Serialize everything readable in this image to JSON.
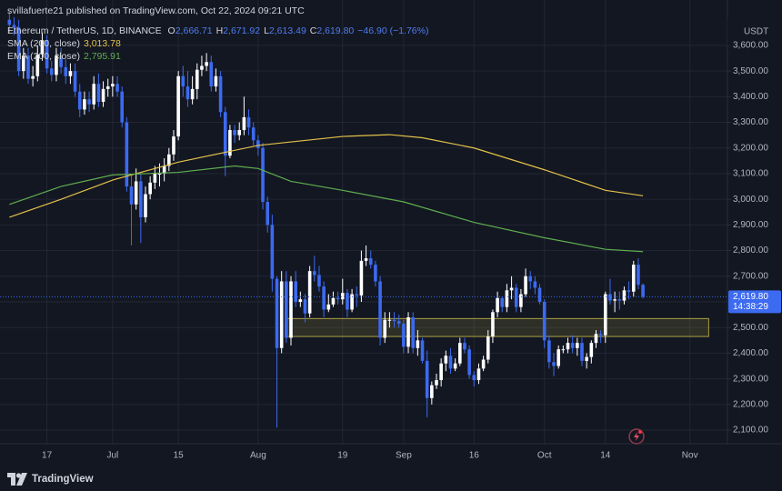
{
  "header": {
    "publisher": "svillafuerte21 published on TradingView.com, Oct 22, 2024 09:21 UTC",
    "symbol": "Ethereum / TetherUS, 1D, BINANCE",
    "ohlc": [
      {
        "label": "O",
        "value": "2,666.71"
      },
      {
        "label": "H",
        "value": "2,671.92"
      },
      {
        "label": "L",
        "value": "2,613.49"
      },
      {
        "label": "C",
        "value": "2,619.80"
      }
    ],
    "change": "−46.90 (−1.76%)",
    "indicators": [
      {
        "label": "SMA (200, close)",
        "value": "3,013.78",
        "color": "#e3c14a"
      },
      {
        "label": "EMA (200, close)",
        "value": "2,795.91",
        "color": "#5fae4f"
      }
    ]
  },
  "footer": {
    "brand": "TradingView"
  },
  "chart_data": {
    "type": "candlestick",
    "currency": "USDT",
    "up_color": "#ffffff",
    "down_color": "#3c6af0",
    "grid": true,
    "x": [
      "Jun 9",
      "Jun 10",
      "Jun 11",
      "Jun 12",
      "Jun 13",
      "Jun 14",
      "Jun 15",
      "Jun 16",
      "Jun 17",
      "Jun 18",
      "Jun 19",
      "Jun 20",
      "Jun 21",
      "Jun 22",
      "Jun 23",
      "Jun 24",
      "Jun 25",
      "Jun 26",
      "Jun 27",
      "Jun 28",
      "Jun 29",
      "Jun 30",
      "Jul 1",
      "Jul 2",
      "Jul 3",
      "Jul 4",
      "Jul 5",
      "Jul 6",
      "Jul 7",
      "Jul 8",
      "Jul 9",
      "Jul 10",
      "Jul 11",
      "Jul 12",
      "Jul 13",
      "Jul 14",
      "Jul 15",
      "Jul 16",
      "Jul 17",
      "Jul 18",
      "Jul 19",
      "Jul 20",
      "Jul 21",
      "Jul 22",
      "Jul 23",
      "Jul 24",
      "Jul 25",
      "Jul 26",
      "Jul 27",
      "Jul 28",
      "Jul 29",
      "Jul 30",
      "Jul 31",
      "Aug 1",
      "Aug 2",
      "Aug 3",
      "Aug 4",
      "Aug 5",
      "Aug 6",
      "Aug 7",
      "Aug 8",
      "Aug 9",
      "Aug 10",
      "Aug 11",
      "Aug 12",
      "Aug 13",
      "Aug 14",
      "Aug 15",
      "Aug 16",
      "Aug 17",
      "Aug 18",
      "Aug 19",
      "Aug 20",
      "Aug 21",
      "Aug 22",
      "Aug 23",
      "Aug 24",
      "Aug 25",
      "Aug 26",
      "Aug 27",
      "Aug 28",
      "Aug 29",
      "Aug 30",
      "Aug 31",
      "Sep 1",
      "Sep 2",
      "Sep 3",
      "Sep 4",
      "Sep 5",
      "Sep 6",
      "Sep 7",
      "Sep 8",
      "Sep 9",
      "Sep 10",
      "Sep 11",
      "Sep 12",
      "Sep 13",
      "Sep 14",
      "Sep 15",
      "Sep 16",
      "Sep 17",
      "Sep 18",
      "Sep 19",
      "Sep 20",
      "Sep 21",
      "Sep 22",
      "Sep 23",
      "Sep 24",
      "Sep 25",
      "Sep 26",
      "Sep 27",
      "Sep 28",
      "Sep 29",
      "Sep 30",
      "Oct 1",
      "Oct 2",
      "Oct 3",
      "Oct 4",
      "Oct 5",
      "Oct 6",
      "Oct 7",
      "Oct 8",
      "Oct 9",
      "Oct 10",
      "Oct 11",
      "Oct 12",
      "Oct 13",
      "Oct 14",
      "Oct 15",
      "Oct 16",
      "Oct 17",
      "Oct 18",
      "Oct 19",
      "Oct 20",
      "Oct 21",
      "Oct 22"
    ],
    "open": [
      3700,
      3680,
      3670,
      3500,
      3560,
      3470,
      3480,
      3565,
      3620,
      3510,
      3485,
      3560,
      3515,
      3480,
      3500,
      3420,
      3350,
      3390,
      3370,
      3450,
      3380,
      3430,
      3440,
      3450,
      3420,
      3300,
      3050,
      2980,
      3070,
      2930,
      3020,
      3065,
      3100,
      3100,
      3130,
      3175,
      3245,
      3480,
      3440,
      3390,
      3430,
      3505,
      3520,
      3535,
      3440,
      3480,
      3340,
      3170,
      3270,
      3250,
      3270,
      3320,
      3280,
      3230,
      3200,
      2990,
      2900,
      2690,
      2420,
      2680,
      2460,
      2680,
      2600,
      2610,
      2555,
      2720,
      2705,
      2660,
      2570,
      2590,
      2615,
      2610,
      2635,
      2570,
      2630,
      2625,
      2760,
      2770,
      2745,
      2680,
      2460,
      2530,
      2530,
      2525,
      2515,
      2425,
      2540,
      2420,
      2450,
      2370,
      2225,
      2275,
      2295,
      2360,
      2390,
      2340,
      2360,
      2440,
      2415,
      2315,
      2295,
      2340,
      2375,
      2465,
      2560,
      2615,
      2580,
      2645,
      2655,
      2580,
      2630,
      2700,
      2680,
      2655,
      2600,
      2450,
      2365,
      2350,
      2415,
      2415,
      2440,
      2420,
      2440,
      2370,
      2385,
      2440,
      2475,
      2470,
      2630,
      2605,
      2610,
      2605,
      2645,
      2640,
      2745,
      2666.71
    ],
    "high": [
      3730,
      3710,
      3700,
      3590,
      3590,
      3520,
      3600,
      3650,
      3640,
      3540,
      3590,
      3590,
      3545,
      3530,
      3530,
      3450,
      3420,
      3420,
      3480,
      3490,
      3460,
      3470,
      3480,
      3480,
      3440,
      3320,
      3100,
      3120,
      3100,
      3050,
      3090,
      3130,
      3140,
      3160,
      3200,
      3270,
      3500,
      3520,
      3500,
      3480,
      3530,
      3560,
      3570,
      3560,
      3510,
      3500,
      3360,
      3290,
      3290,
      3300,
      3400,
      3350,
      3300,
      3250,
      3220,
      3010,
      2940,
      2700,
      2720,
      2720,
      2700,
      2720,
      2640,
      2630,
      2740,
      2780,
      2740,
      2680,
      2630,
      2640,
      2640,
      2690,
      2650,
      2650,
      2660,
      2800,
      2820,
      2800,
      2760,
      2700,
      2560,
      2560,
      2560,
      2550,
      2530,
      2560,
      2560,
      2490,
      2460,
      2410,
      2290,
      2320,
      2380,
      2410,
      2420,
      2380,
      2460,
      2460,
      2430,
      2330,
      2360,
      2390,
      2490,
      2570,
      2640,
      2620,
      2670,
      2700,
      2670,
      2650,
      2730,
      2720,
      2700,
      2670,
      2610,
      2470,
      2400,
      2430,
      2430,
      2460,
      2470,
      2460,
      2460,
      2400,
      2450,
      2490,
      2490,
      2640,
      2690,
      2640,
      2640,
      2660,
      2680,
      2760,
      2770,
      2671.92
    ],
    "low": [
      3650,
      3640,
      3480,
      3470,
      3450,
      3440,
      3460,
      3540,
      3490,
      3460,
      3460,
      3490,
      3450,
      3450,
      3400,
      3320,
      3330,
      3340,
      3350,
      3360,
      3360,
      3400,
      3400,
      3400,
      3280,
      3030,
      2820,
      2960,
      2830,
      2910,
      3000,
      3040,
      3050,
      3070,
      3110,
      3150,
      3230,
      3400,
      3360,
      3370,
      3390,
      3480,
      3500,
      3420,
      3420,
      3320,
      3090,
      3160,
      3220,
      3230,
      3250,
      3250,
      3210,
      3170,
      2960,
      2870,
      2640,
      2110,
      2400,
      2440,
      2430,
      2580,
      2580,
      2520,
      2540,
      2680,
      2640,
      2540,
      2560,
      2580,
      2590,
      2590,
      2540,
      2560,
      2580,
      2600,
      2740,
      2730,
      2660,
      2430,
      2440,
      2500,
      2500,
      2500,
      2400,
      2400,
      2400,
      2390,
      2360,
      2150,
      2200,
      2260,
      2270,
      2330,
      2320,
      2330,
      2350,
      2400,
      2300,
      2270,
      2280,
      2330,
      2360,
      2440,
      2540,
      2560,
      2560,
      2610,
      2560,
      2560,
      2620,
      2650,
      2630,
      2590,
      2420,
      2340,
      2310,
      2340,
      2400,
      2400,
      2400,
      2390,
      2350,
      2340,
      2360,
      2420,
      2440,
      2440,
      2590,
      2560,
      2570,
      2590,
      2610,
      2620,
      2650,
      2613.49
    ],
    "close": [
      3680,
      3670,
      3500,
      3560,
      3470,
      3480,
      3565,
      3620,
      3510,
      3485,
      3560,
      3515,
      3480,
      3500,
      3420,
      3350,
      3390,
      3370,
      3450,
      3380,
      3430,
      3440,
      3450,
      3420,
      3300,
      3050,
      2980,
      3070,
      2930,
      3020,
      3065,
      3100,
      3100,
      3130,
      3175,
      3245,
      3480,
      3440,
      3390,
      3430,
      3505,
      3520,
      3535,
      3440,
      3480,
      3340,
      3170,
      3270,
      3250,
      3270,
      3320,
      3280,
      3230,
      3200,
      2990,
      2900,
      2690,
      2420,
      2680,
      2460,
      2680,
      2600,
      2610,
      2555,
      2720,
      2705,
      2660,
      2570,
      2590,
      2615,
      2610,
      2635,
      2570,
      2630,
      2625,
      2760,
      2770,
      2745,
      2680,
      2460,
      2530,
      2530,
      2525,
      2515,
      2425,
      2540,
      2420,
      2450,
      2370,
      2225,
      2275,
      2295,
      2360,
      2390,
      2340,
      2360,
      2440,
      2415,
      2315,
      2295,
      2340,
      2375,
      2465,
      2560,
      2615,
      2580,
      2645,
      2655,
      2580,
      2630,
      2700,
      2680,
      2655,
      2600,
      2450,
      2365,
      2350,
      2415,
      2415,
      2440,
      2420,
      2440,
      2370,
      2385,
      2440,
      2475,
      2470,
      2630,
      2605,
      2610,
      2605,
      2645,
      2640,
      2745,
      2666.71,
      2619.8
    ],
    "lines": [
      {
        "name": "SMA (200, close)",
        "color": "#e3c14a",
        "x": [
          "Jun 9",
          "Jun 20",
          "Jul 1",
          "Jul 15",
          "Aug 1",
          "Aug 19",
          "Aug 29",
          "Sep 5",
          "Sep 16",
          "Oct 1",
          "Oct 14",
          "Oct 22"
        ],
        "values": [
          2930,
          3000,
          3075,
          3145,
          3210,
          3245,
          3252,
          3240,
          3200,
          3115,
          3035,
          3013.78
        ]
      },
      {
        "name": "EMA (200, close)",
        "color": "#5fae4f",
        "x": [
          "Jun 9",
          "Jun 20",
          "Jul 1",
          "Jul 15",
          "Jul 27",
          "Aug 1",
          "Aug 8",
          "Aug 19",
          "Sep 1",
          "Sep 16",
          "Oct 1",
          "Oct 14",
          "Oct 22"
        ],
        "values": [
          2980,
          3050,
          3095,
          3105,
          3130,
          3120,
          3070,
          3035,
          2990,
          2910,
          2850,
          2805,
          2795.91
        ]
      }
    ],
    "zone": {
      "low": 2465,
      "high": 2535,
      "x": [
        "Aug 7",
        "Nov 5"
      ],
      "color": "#e8d44d"
    },
    "last_price": {
      "value": 2619.8,
      "label": "2,619.80",
      "countdown": "14:38:29"
    },
    "xlim": [
      "Jun 7",
      "Nov 9"
    ],
    "xticks": [
      {
        "value": "Jun 17",
        "label": "17"
      },
      {
        "value": "Jul 1",
        "label": "Jul"
      },
      {
        "value": "Jul 15",
        "label": "15"
      },
      {
        "value": "Aug 1",
        "label": "Aug"
      },
      {
        "value": "Aug 19",
        "label": "19"
      },
      {
        "value": "Sep 1",
        "label": "Sep"
      },
      {
        "value": "Sep 16",
        "label": "16"
      },
      {
        "value": "Oct 1",
        "label": "Oct"
      },
      {
        "value": "Oct 14",
        "label": "14"
      },
      {
        "value": "Nov 1",
        "label": "Nov"
      }
    ],
    "ylim": [
      2047,
      3777
    ],
    "yticks": [
      {
        "value": 2100,
        "label": "2,100.00"
      },
      {
        "value": 2200,
        "label": "2,200.00"
      },
      {
        "value": 2300,
        "label": "2,300.00"
      },
      {
        "value": 2400,
        "label": "2,400.00"
      },
      {
        "value": 2500,
        "label": "2,500.00"
      },
      {
        "value": 2600,
        "label": "2,600.00"
      },
      {
        "value": 2700,
        "label": "2,700.00"
      },
      {
        "value": 2800,
        "label": "2,800.00"
      },
      {
        "value": 2900,
        "label": "2,900.00"
      },
      {
        "value": 3000,
        "label": "3,000.00"
      },
      {
        "value": 3100,
        "label": "3,100.00"
      },
      {
        "value": 3200,
        "label": "3,200.00"
      },
      {
        "value": 3300,
        "label": "3,300.00"
      },
      {
        "value": 3400,
        "label": "3,400.00"
      },
      {
        "value": 3500,
        "label": "3,500.00"
      },
      {
        "value": 3600,
        "label": "3,600.00"
      }
    ]
  }
}
